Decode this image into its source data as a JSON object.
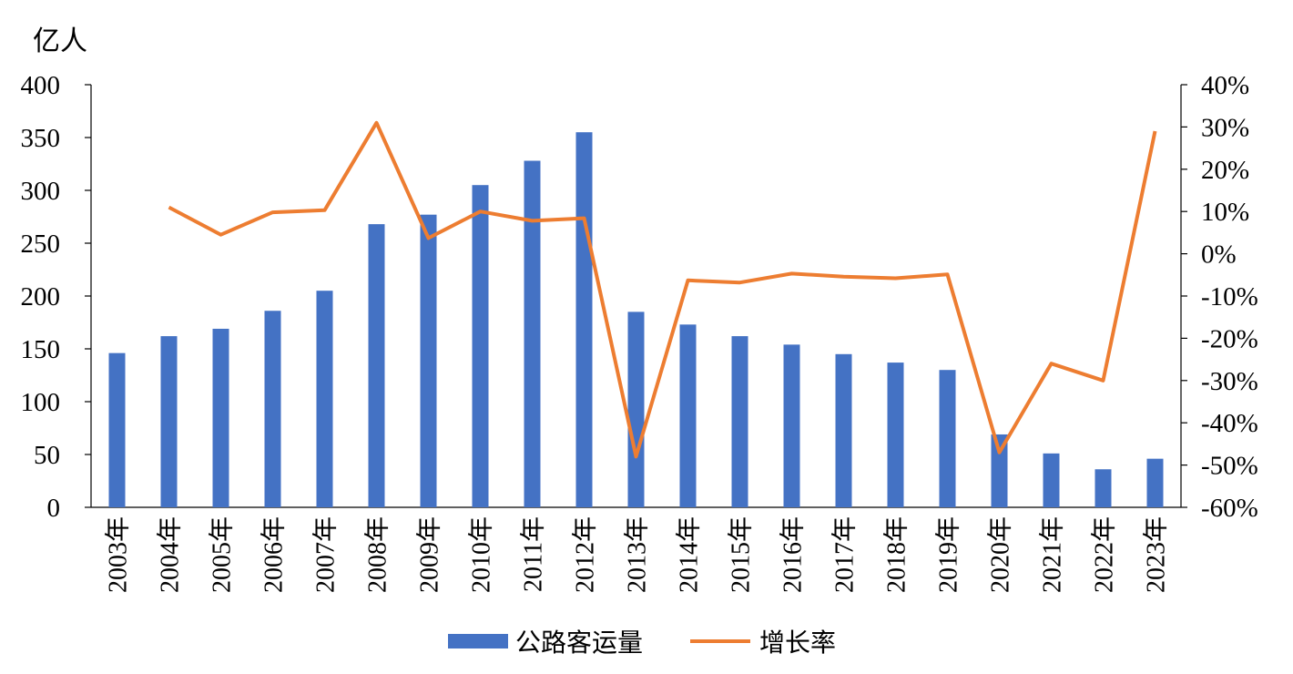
{
  "chart_data": {
    "type": "bar+line",
    "y_left_unit": "亿人",
    "categories": [
      "2003年",
      "2004年",
      "2005年",
      "2006年",
      "2007年",
      "2008年",
      "2009年",
      "2010年",
      "2011年",
      "2012年",
      "2013年",
      "2014年",
      "2015年",
      "2016年",
      "2017年",
      "2018年",
      "2019年",
      "2020年",
      "2021年",
      "2022年",
      "2023年"
    ],
    "series": [
      {
        "name": "公路客运量",
        "type": "bar",
        "axis": "left",
        "color": "#4472C4",
        "values": [
          146,
          162,
          169,
          186,
          205,
          268,
          277,
          305,
          328,
          355,
          185,
          173,
          162,
          154,
          145,
          137,
          130,
          69,
          51,
          36,
          46
        ]
      },
      {
        "name": "增长率",
        "type": "line",
        "axis": "right",
        "color": "#ED7D31",
        "values": [
          null,
          11,
          4.5,
          9.8,
          10.3,
          31,
          3.7,
          10,
          7.8,
          8.4,
          -48,
          -6.3,
          -6.8,
          -4.7,
          -5.4,
          -5.8,
          -4.9,
          -47,
          -26,
          -30,
          29
        ]
      }
    ],
    "y_left": {
      "min": 0,
      "max": 400,
      "ticks": [
        "0",
        "50",
        "100",
        "150",
        "200",
        "250",
        "300",
        "350",
        "400"
      ]
    },
    "y_right": {
      "min": -60,
      "max": 40,
      "ticks": [
        "-60%",
        "-50%",
        "-40%",
        "-30%",
        "-20%",
        "-10%",
        "0%",
        "10%",
        "20%",
        "30%",
        "40%"
      ]
    },
    "legend_position": "bottom",
    "grid": false
  }
}
